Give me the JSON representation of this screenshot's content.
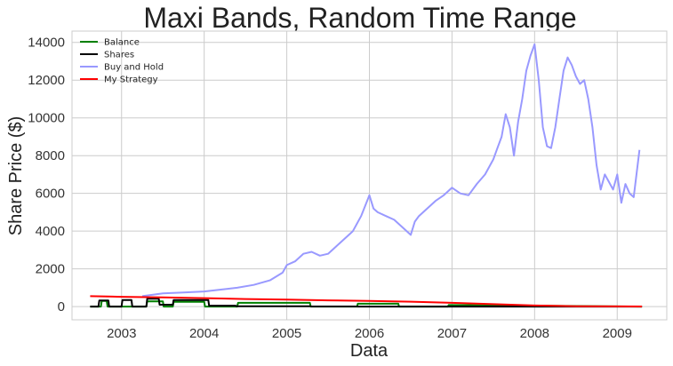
{
  "chart_data": {
    "type": "line",
    "title": "Maxi Bands, Random Time Range",
    "xlabel": "Data",
    "ylabel": "Share Price ($)",
    "xlim": [
      2002.4,
      2009.6
    ],
    "ylim": [
      -700,
      14600
    ],
    "x_ticks": [
      2003,
      2004,
      2005,
      2006,
      2007,
      2008,
      2009
    ],
    "x_tick_labels": [
      "2003",
      "2004",
      "2005",
      "2006",
      "2007",
      "2008",
      "2009"
    ],
    "y_ticks": [
      0,
      2000,
      4000,
      6000,
      8000,
      10000,
      12000,
      14000
    ],
    "y_tick_labels": [
      "0",
      "2000",
      "4000",
      "6000",
      "8000",
      "10000",
      "12000",
      "14000"
    ],
    "grid": true,
    "legend_position": "top-left",
    "series": [
      {
        "name": "Balance",
        "color": "#008000",
        "x": [
          2002.62,
          2002.75,
          2002.76,
          2002.82,
          2002.83,
          2003.3,
          2003.31,
          2003.5,
          2003.51,
          2003.62,
          2003.63,
          2004.0,
          2004.01,
          2004.4,
          2004.41,
          2005.28,
          2005.29,
          2005.85,
          2005.86,
          2006.35,
          2006.36,
          2006.95,
          2006.96,
          2009.3
        ],
        "y": [
          0,
          0,
          300,
          300,
          0,
          0,
          280,
          280,
          0,
          0,
          250,
          250,
          0,
          0,
          200,
          200,
          0,
          0,
          150,
          150,
          0,
          0,
          80,
          0
        ]
      },
      {
        "name": "Shares",
        "color": "#000000",
        "x": [
          2002.62,
          2002.72,
          2002.73,
          2002.84,
          2002.85,
          2003.0,
          2003.01,
          2003.12,
          2003.13,
          2003.3,
          2003.31,
          2003.45,
          2003.46,
          2003.62,
          2003.63,
          2004.05,
          2004.06,
          2004.38,
          2004.39,
          2005.28,
          2005.29,
          2005.3,
          2005.85,
          2005.86,
          2006.35,
          2006.36,
          2009.3
        ],
        "y": [
          0,
          0,
          320,
          320,
          0,
          0,
          350,
          350,
          0,
          0,
          420,
          420,
          100,
          100,
          350,
          350,
          50,
          50,
          20,
          20,
          10,
          5,
          5,
          0,
          0,
          0,
          0
        ]
      },
      {
        "name": "Buy and Hold",
        "color": "#9999ff",
        "x": [
          2003.25,
          2003.5,
          2003.75,
          2004.0,
          2004.2,
          2004.4,
          2004.6,
          2004.8,
          2004.95,
          2005.0,
          2005.1,
          2005.2,
          2005.3,
          2005.4,
          2005.5,
          2005.6,
          2005.7,
          2005.8,
          2005.9,
          2006.0,
          2006.05,
          2006.1,
          2006.2,
          2006.3,
          2006.4,
          2006.5,
          2006.55,
          2006.6,
          2006.7,
          2006.8,
          2006.9,
          2007.0,
          2007.1,
          2007.2,
          2007.3,
          2007.4,
          2007.5,
          2007.55,
          2007.6,
          2007.65,
          2007.7,
          2007.75,
          2007.8,
          2007.85,
          2007.9,
          2007.95,
          2008.0,
          2008.05,
          2008.1,
          2008.15,
          2008.2,
          2008.25,
          2008.3,
          2008.35,
          2008.4,
          2008.45,
          2008.5,
          2008.55,
          2008.6,
          2008.65,
          2008.7,
          2008.75,
          2008.8,
          2008.85,
          2008.9,
          2008.95,
          2009.0,
          2009.05,
          2009.1,
          2009.15,
          2009.2,
          2009.27
        ],
        "y": [
          550,
          700,
          750,
          800,
          900,
          1000,
          1150,
          1400,
          1800,
          2200,
          2400,
          2800,
          2900,
          2700,
          2800,
          3200,
          3600,
          4000,
          4800,
          5900,
          5200,
          5000,
          4800,
          4600,
          4200,
          3800,
          4500,
          4800,
          5200,
          5600,
          5900,
          6300,
          6000,
          5900,
          6500,
          7000,
          7800,
          8400,
          9000,
          10200,
          9500,
          8000,
          9800,
          11000,
          12500,
          13300,
          13900,
          12000,
          9500,
          8500,
          8400,
          9500,
          11000,
          12500,
          13200,
          12800,
          12200,
          11800,
          12000,
          11000,
          9500,
          7500,
          6200,
          7000,
          6600,
          6200,
          7000,
          5500,
          6500,
          6000,
          5800,
          8300
        ]
      },
      {
        "name": "My Strategy",
        "color": "#ff0000",
        "x": [
          2002.62,
          2003.0,
          2003.5,
          2004.0,
          2004.5,
          2005.0,
          2005.5,
          2006.0,
          2006.5,
          2007.0,
          2007.5,
          2008.0,
          2008.5,
          2009.0,
          2009.3
        ],
        "y": [
          550,
          520,
          490,
          450,
          400,
          370,
          330,
          300,
          260,
          200,
          130,
          60,
          20,
          10,
          5
        ]
      }
    ]
  }
}
